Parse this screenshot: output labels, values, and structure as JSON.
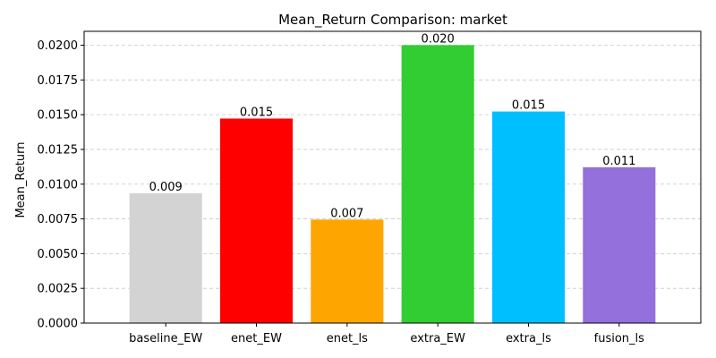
{
  "chart_data": {
    "type": "bar",
    "title": "Mean_Return Comparison: market",
    "xlabel": "",
    "ylabel": "Mean_Return",
    "categories": [
      "baseline_EW",
      "enet_EW",
      "enet_ls",
      "extra_EW",
      "extra_ls",
      "fusion_ls"
    ],
    "values": [
      0.00935,
      0.01472,
      0.00745,
      0.02001,
      0.01523,
      0.01122
    ],
    "data_labels": [
      "0.009",
      "0.015",
      "0.007",
      "0.020",
      "0.015",
      "0.011"
    ],
    "colors": [
      "#d3d3d3",
      "#ff0000",
      "#ffa500",
      "#32cd32",
      "#00bfff",
      "#9370db"
    ],
    "ylim": [
      0,
      0.021
    ],
    "yticks": [
      0,
      0.0025,
      0.005,
      0.0075,
      0.01,
      0.0125,
      0.015,
      0.0175,
      0.02
    ],
    "ytick_labels": [
      "0.0000",
      "0.0025",
      "0.0050",
      "0.0075",
      "0.0100",
      "0.0125",
      "0.0150",
      "0.0175",
      "0.0200"
    ],
    "grid": true
  }
}
